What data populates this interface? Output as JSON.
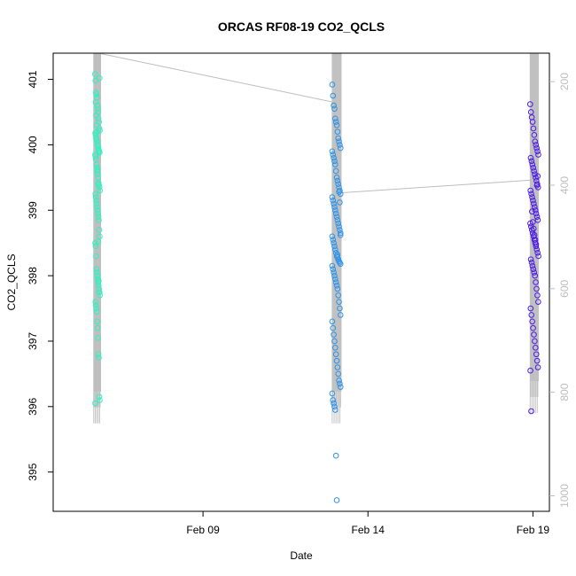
{
  "chart_data": {
    "type": "scatter",
    "title": "ORCAS RF08-19 CO2_QCLS",
    "xlabel": "Date",
    "ylabel": "CO2_QCLS",
    "xlim": [
      "2016-02-04T11:00",
      "2016-02-19T12:00"
    ],
    "ylim": [
      394.4,
      401.4
    ],
    "y2lim": [
      1030,
      145
    ],
    "x_ticks": [
      {
        "t": "2016-02-09",
        "label": "Feb 09"
      },
      {
        "t": "2016-02-14",
        "label": "Feb 14"
      },
      {
        "t": "2016-02-19",
        "label": "Feb 19"
      }
    ],
    "y_ticks": [
      395,
      396,
      397,
      398,
      399,
      400,
      401
    ],
    "y2_ticks": [
      200,
      400,
      600,
      800,
      1000
    ],
    "grid": false,
    "colors": {
      "flight_1": "#2ef2c0",
      "flight_2": "#2b93ea",
      "flight_3": "#4b19e8",
      "pressure_line": "#bdbdbd",
      "axis": "#000000"
    },
    "series": [
      {
        "color": "#2ef2c0",
        "x_start": "2016-02-05T17:30",
        "x_end": "2016-02-05T21:00",
        "y": [
          401.08,
          400.98,
          400.8,
          400.77,
          400.72,
          400.6,
          400.55,
          400.5,
          400.4,
          400.35,
          400.25,
          400.22,
          400.18,
          400.15,
          400.1,
          400.08,
          400.05,
          400.0,
          399.98,
          399.95,
          399.92,
          399.9,
          399.88,
          399.85,
          399.82,
          399.78,
          399.7,
          399.65,
          399.6,
          399.55,
          399.5,
          399.42,
          399.38,
          399.35,
          399.3,
          399.25,
          399.2,
          399.15,
          399.1,
          399.05,
          399.0,
          398.95,
          398.9,
          398.85,
          398.7,
          398.6,
          398.5,
          398.45,
          398.3,
          398.1,
          398.05,
          398.0,
          397.95,
          397.9,
          397.85,
          397.8,
          397.75,
          397.7,
          397.6,
          397.55,
          397.5,
          397.45,
          397.3,
          397.2,
          397.05,
          396.8,
          396.75,
          396.15,
          396.1,
          396.05,
          400.65,
          400.45,
          400.3,
          400.2,
          399.62,
          399.4,
          398.52,
          397.92,
          397.75,
          401.02
        ]
      },
      {
        "color": "#2b93ea",
        "x_start": "2016-02-12T22:00",
        "x_end": "2016-02-13T04:30",
        "y": [
          400.92,
          400.75,
          400.6,
          400.55,
          400.4,
          400.35,
          400.3,
          400.2,
          400.1,
          400.05,
          400.0,
          399.95,
          399.9,
          399.85,
          399.8,
          399.75,
          399.7,
          399.6,
          399.5,
          399.45,
          399.4,
          399.35,
          399.3,
          399.25,
          399.2,
          399.15,
          399.1,
          399.05,
          399.0,
          398.95,
          398.9,
          398.85,
          398.8,
          398.75,
          398.7,
          398.65,
          398.6,
          398.55,
          398.5,
          398.45,
          398.4,
          398.35,
          398.3,
          398.28,
          398.25,
          398.22,
          398.2,
          398.18,
          398.15,
          398.1,
          398.05,
          398.0,
          397.95,
          397.9,
          397.85,
          397.8,
          397.7,
          397.6,
          397.5,
          397.4,
          397.3,
          397.2,
          397.1,
          397.0,
          396.9,
          396.8,
          396.7,
          396.6,
          396.5,
          396.4,
          396.35,
          396.3,
          396.2,
          396.1,
          396.05,
          396.0,
          395.95,
          395.25,
          394.57,
          398.32,
          398.25,
          399.28,
          399.12,
          398.62
        ]
      },
      {
        "color": "#4b19e8",
        "x_start": "2016-02-18T22:00",
        "x_end": "2016-02-19T04:00",
        "y": [
          400.62,
          400.5,
          400.42,
          400.35,
          400.25,
          400.15,
          400.05,
          400.0,
          399.95,
          399.9,
          399.85,
          399.8,
          399.75,
          399.7,
          399.65,
          399.6,
          399.55,
          399.5,
          399.45,
          399.4,
          399.35,
          399.3,
          399.25,
          399.2,
          399.15,
          399.1,
          399.05,
          399.0,
          398.95,
          398.9,
          398.85,
          398.8,
          398.75,
          398.7,
          398.65,
          398.6,
          398.55,
          398.5,
          398.45,
          398.4,
          398.35,
          398.3,
          398.25,
          398.2,
          398.15,
          398.1,
          398.05,
          398.0,
          397.9,
          397.8,
          397.7,
          397.6,
          397.5,
          397.4,
          397.3,
          397.2,
          397.1,
          397.0,
          396.9,
          396.8,
          396.7,
          396.6,
          396.55,
          395.93,
          398.98,
          398.82,
          398.72,
          398.62,
          398.55,
          398.48,
          399.38,
          399.52
        ]
      }
    ],
    "pressure_trace": {
      "color": "#bdbdbd",
      "points": [
        {
          "t": "2016-02-05T20:00",
          "p": 145
        },
        {
          "t": "2016-02-12T23:30",
          "p": 240
        },
        {
          "t": "2016-02-13T03:00",
          "p": 415
        },
        {
          "t": "2016-02-19T00:00",
          "p": 390
        }
      ],
      "profile_bands": [
        {
          "t0": "2016-02-05T16:30",
          "t1": "2016-02-05T21:30",
          "p_top": 145,
          "p_bot": 860
        },
        {
          "t0": "2016-02-12T22:00",
          "t1": "2016-02-13T04:30",
          "p_top": 145,
          "p_bot": 860
        },
        {
          "t0": "2016-02-18T22:00",
          "t1": "2016-02-19T04:00",
          "p_top": 145,
          "p_bot": 840
        }
      ]
    }
  }
}
